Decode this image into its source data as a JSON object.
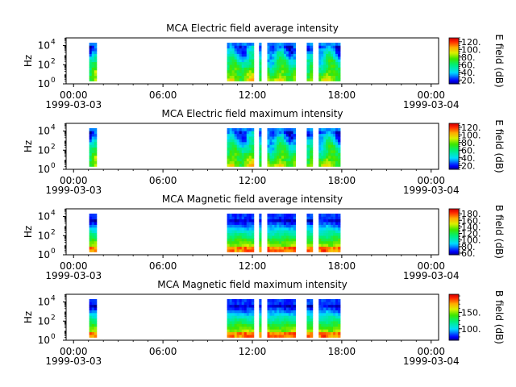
{
  "figure": {
    "x_ticks": [
      {
        "hour": 0,
        "time": "00:00",
        "date": "1999-03-03"
      },
      {
        "hour": 6,
        "time": "06:00",
        "date": ""
      },
      {
        "hour": 12,
        "time": "12:00",
        "date": ""
      },
      {
        "hour": 18,
        "time": "18:00",
        "date": ""
      },
      {
        "hour": 24,
        "time": "00:00",
        "date": "1999-03-04"
      }
    ],
    "x_range_hours": [
      -0.5,
      24.5
    ],
    "minor_tick_step_hours": 1
  },
  "chart_data": [
    {
      "type": "heatmap",
      "title": "MCA  Electric field average intensity",
      "ylabel": "Hz",
      "yscale": "log",
      "ylim_log10": [
        0,
        4.8
      ],
      "y_ticks": [
        {
          "base": "10",
          "exp": "0"
        },
        {
          "base": "10",
          "exp": "2"
        },
        {
          "base": "10",
          "exp": "4"
        }
      ],
      "colorbar_label": "E field (dB)",
      "colorbar_range": [
        10,
        130
      ],
      "colorbar_ticks": [
        "20.",
        "40.",
        "60.",
        "80.",
        "100.",
        "120."
      ],
      "colorbar_tick_values": [
        20,
        40,
        60,
        80,
        100,
        120
      ],
      "colormap": "rainbow",
      "data_segments_hours": [
        [
          1.05,
          1.55
        ],
        [
          10.3,
          12.1
        ],
        [
          12.45,
          12.6
        ],
        [
          13.0,
          14.9
        ],
        [
          15.65,
          16.05
        ],
        [
          16.45,
          17.9
        ]
      ],
      "log_freq_extent": [
        0.3,
        4.3
      ],
      "level_profile": "electric"
    },
    {
      "type": "heatmap",
      "title": "MCA  Electric field maximum intensity",
      "ylabel": "Hz",
      "yscale": "log",
      "ylim_log10": [
        0,
        4.8
      ],
      "y_ticks": [
        {
          "base": "10",
          "exp": "0"
        },
        {
          "base": "10",
          "exp": "2"
        },
        {
          "base": "10",
          "exp": "4"
        }
      ],
      "colorbar_label": "E field (dB)",
      "colorbar_range": [
        10,
        130
      ],
      "colorbar_ticks": [
        "20.",
        "40.",
        "60.",
        "80.",
        "100.",
        "120."
      ],
      "colorbar_tick_values": [
        20,
        40,
        60,
        80,
        100,
        120
      ],
      "colormap": "rainbow",
      "data_segments_hours": [
        [
          1.05,
          1.55
        ],
        [
          10.3,
          12.1
        ],
        [
          12.45,
          12.6
        ],
        [
          13.0,
          14.9
        ],
        [
          15.65,
          16.05
        ],
        [
          16.45,
          17.9
        ]
      ],
      "log_freq_extent": [
        0.3,
        4.3
      ],
      "level_profile": "electric"
    },
    {
      "type": "heatmap",
      "title": "MCA  Magnetic field average intensity",
      "ylabel": "Hz",
      "yscale": "log",
      "ylim_log10": [
        0,
        4.8
      ],
      "y_ticks": [
        {
          "base": "10",
          "exp": "0"
        },
        {
          "base": "10",
          "exp": "2"
        },
        {
          "base": "10",
          "exp": "4"
        }
      ],
      "colorbar_label": "B field (dB)",
      "colorbar_range": [
        55,
        195
      ],
      "colorbar_ticks": [
        "60.",
        "80.",
        "100.",
        "120.",
        "140.",
        "160.",
        "180."
      ],
      "colorbar_tick_values": [
        60,
        80,
        100,
        120,
        140,
        160,
        180
      ],
      "colormap": "rainbow",
      "data_segments_hours": [
        [
          1.05,
          1.55
        ],
        [
          10.3,
          12.1
        ],
        [
          12.45,
          12.6
        ],
        [
          13.0,
          14.9
        ],
        [
          15.65,
          16.05
        ],
        [
          16.45,
          17.9
        ]
      ],
      "log_freq_extent": [
        0.3,
        4.3
      ],
      "level_profile": "magnetic"
    },
    {
      "type": "heatmap",
      "title": "MCA  Magnetic field maximum intensity",
      "ylabel": "Hz",
      "yscale": "log",
      "ylim_log10": [
        0,
        4.8
      ],
      "y_ticks": [
        {
          "base": "10",
          "exp": "0"
        },
        {
          "base": "10",
          "exp": "2"
        },
        {
          "base": "10",
          "exp": "4"
        }
      ],
      "colorbar_label": "B field (dB)",
      "colorbar_range": [
        65,
        205
      ],
      "colorbar_ticks": [
        "100.",
        "150."
      ],
      "colorbar_tick_values": [
        100,
        150
      ],
      "colormap": "rainbow",
      "data_segments_hours": [
        [
          1.05,
          1.55
        ],
        [
          10.3,
          12.1
        ],
        [
          12.45,
          12.6
        ],
        [
          13.0,
          14.9
        ],
        [
          15.65,
          16.05
        ],
        [
          16.45,
          17.9
        ]
      ],
      "log_freq_extent": [
        0.3,
        4.3
      ],
      "level_profile": "magnetic"
    }
  ]
}
